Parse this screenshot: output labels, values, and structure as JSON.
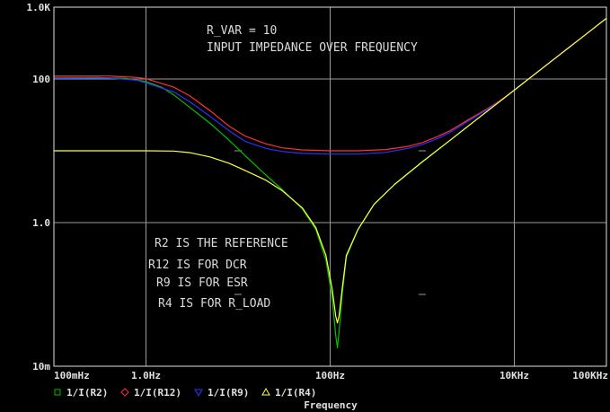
{
  "chart_data": {
    "type": "line",
    "title": "",
    "xlabel": "Frequency",
    "ylabel": "",
    "x_scale": "log",
    "y_scale": "log",
    "xlim": [
      0.1,
      100000
    ],
    "ylim": [
      0.01,
      1000
    ],
    "grid": true,
    "background": "#000000",
    "x_ticks": [
      {
        "value": 0.1,
        "label": "100mHz"
      },
      {
        "value": 1,
        "label": "1.0Hz"
      },
      {
        "value": 100,
        "label": "100Hz"
      },
      {
        "value": 10000,
        "label": "10KHz"
      },
      {
        "value": 100000,
        "label": "100KHz"
      }
    ],
    "y_ticks": [
      {
        "value": 0.01,
        "label": "10m"
      },
      {
        "value": 1,
        "label": "1.0"
      },
      {
        "value": 100,
        "label": "100"
      },
      {
        "value": 1000,
        "label": "1.0K"
      }
    ],
    "annotations": [
      "R_VAR = 10",
      "INPUT IMPEDANCE OVER FREQUENCY",
      "R2 IS THE REFERENCE",
      "R12 IS FOR DCR",
      "R9 IS FOR ESR",
      "R4 IS FOR R_LOAD"
    ],
    "legend_position": "bottom-left",
    "series": [
      {
        "name": "1/I(R2)",
        "color": "#00c000",
        "marker": "square",
        "points": [
          [
            0.1,
            105
          ],
          [
            0.3,
            105
          ],
          [
            0.6,
            102
          ],
          [
            1,
            92
          ],
          [
            1.5,
            76
          ],
          [
            2,
            60
          ],
          [
            3,
            40
          ],
          [
            5,
            24
          ],
          [
            8,
            14
          ],
          [
            12,
            8.5
          ],
          [
            20,
            4.6
          ],
          [
            30,
            2.9
          ],
          [
            50,
            1.55
          ],
          [
            70,
            0.8
          ],
          [
            90,
            0.3
          ],
          [
            105,
            0.09
          ],
          [
            115,
            0.027
          ],
          [
            120,
            0.018
          ],
          [
            125,
            0.03
          ],
          [
            135,
            0.1
          ],
          [
            150,
            0.33
          ],
          [
            200,
            0.8
          ],
          [
            300,
            1.8
          ],
          [
            500,
            3.4
          ],
          [
            1000,
            7
          ],
          [
            2000,
            14
          ],
          [
            4000,
            28
          ],
          [
            7000,
            49
          ],
          [
            10000,
            70
          ],
          [
            30000,
            210
          ],
          [
            70000,
            490
          ],
          [
            100000,
            700
          ]
        ]
      },
      {
        "name": "1/I(R12)",
        "color": "#ff3030",
        "marker": "diamond",
        "points": [
          [
            0.1,
            110
          ],
          [
            0.4,
            110
          ],
          [
            0.8,
            105
          ],
          [
            1,
            101
          ],
          [
            2,
            77
          ],
          [
            3,
            58
          ],
          [
            5,
            36
          ],
          [
            8,
            22
          ],
          [
            12,
            16
          ],
          [
            20,
            12.5
          ],
          [
            30,
            11
          ],
          [
            50,
            10.3
          ],
          [
            100,
            10
          ],
          [
            200,
            10
          ],
          [
            400,
            10.4
          ],
          [
            700,
            11.5
          ],
          [
            1000,
            13
          ],
          [
            1500,
            16
          ],
          [
            2000,
            19
          ],
          [
            3000,
            26
          ],
          [
            5000,
            38
          ],
          [
            7000,
            50
          ],
          [
            10000,
            70
          ],
          [
            30000,
            210
          ],
          [
            70000,
            490
          ],
          [
            100000,
            700
          ]
        ]
      },
      {
        "name": "1/I(R9)",
        "color": "#3030ff",
        "marker": "triangle-down",
        "points": [
          [
            0.1,
            104
          ],
          [
            0.4,
            103
          ],
          [
            0.8,
            96
          ],
          [
            1,
            88
          ],
          [
            2,
            66
          ],
          [
            3,
            48
          ],
          [
            5,
            30
          ],
          [
            8,
            19
          ],
          [
            12,
            13.5
          ],
          [
            20,
            10.8
          ],
          [
            30,
            9.8
          ],
          [
            50,
            9.2
          ],
          [
            100,
            9
          ],
          [
            200,
            9
          ],
          [
            400,
            9.5
          ],
          [
            700,
            10.8
          ],
          [
            1000,
            12.2
          ],
          [
            1500,
            15
          ],
          [
            2000,
            18
          ],
          [
            3000,
            25
          ],
          [
            5000,
            37
          ],
          [
            7000,
            49
          ],
          [
            10000,
            70
          ],
          [
            30000,
            210
          ],
          [
            70000,
            490
          ],
          [
            100000,
            700
          ]
        ]
      },
      {
        "name": "1/I(R4)",
        "color": "#ffff40",
        "marker": "triangle-up",
        "points": [
          [
            0.1,
            10
          ],
          [
            1,
            10
          ],
          [
            2,
            9.9
          ],
          [
            3,
            9.4
          ],
          [
            5,
            8.2
          ],
          [
            8,
            6.7
          ],
          [
            12,
            5.3
          ],
          [
            20,
            3.9
          ],
          [
            30,
            2.8
          ],
          [
            50,
            1.6
          ],
          [
            70,
            0.85
          ],
          [
            90,
            0.35
          ],
          [
            105,
            0.12
          ],
          [
            115,
            0.05
          ],
          [
            120,
            0.04
          ],
          [
            125,
            0.05
          ],
          [
            135,
            0.12
          ],
          [
            150,
            0.35
          ],
          [
            200,
            0.8
          ],
          [
            300,
            1.8
          ],
          [
            500,
            3.4
          ],
          [
            1000,
            7
          ],
          [
            2000,
            14
          ],
          [
            4000,
            28
          ],
          [
            7000,
            49
          ],
          [
            10000,
            70
          ],
          [
            30000,
            210
          ],
          [
            70000,
            490
          ],
          [
            100000,
            700
          ]
        ]
      }
    ]
  }
}
